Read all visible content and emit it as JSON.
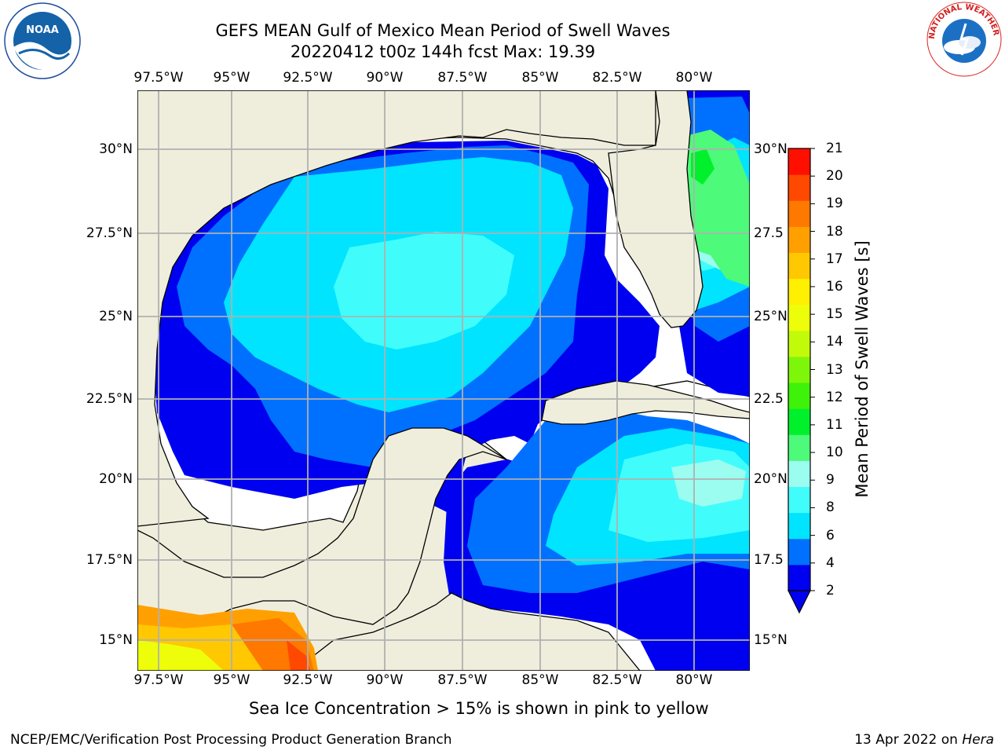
{
  "title": {
    "line1": "GEFS MEAN Gulf of Mexico Mean Period of Swell Waves",
    "line2": "20220412 t00z 144h fcst   Max: 19.39"
  },
  "map": {
    "lon_labels": [
      "97.5°W",
      "95°W",
      "92.5°W",
      "90°W",
      "87.5°W",
      "85°W",
      "82.5°W",
      "80°W"
    ],
    "lat_labels_left": [
      "30°N",
      "27.5°N",
      "25°N",
      "22.5°N",
      "20°N",
      "17.5°N",
      "15°N"
    ],
    "lat_labels_right": [
      "30°N",
      "27.5",
      "25°N",
      "22.5",
      "20°N",
      "17.5",
      "15°N"
    ],
    "land_color": "#efeedd",
    "grid_color": "#b0b0b0"
  },
  "colorbar": {
    "title": "Mean Period of Swell Waves [s]",
    "labels": [
      "21",
      "20",
      "19",
      "18",
      "17",
      "16",
      "15",
      "14",
      "13",
      "12",
      "11",
      "10",
      "9",
      "8",
      "6",
      "4",
      "2"
    ],
    "colors": [
      "#0000f0",
      "#0071ff",
      "#00e4ff",
      "#40fdfb",
      "#9bfdf0",
      "#4dfa7a",
      "#00f02c",
      "#3ff209",
      "#7df60a",
      "#c2fb0a",
      "#eefd0a",
      "#ffef00",
      "#ffc800",
      "#ffa000",
      "#ff7800",
      "#ff4800",
      "#ff0f00"
    ]
  },
  "footnote": "Sea Ice Concentration > 15% is shown in pink to yellow",
  "credit": "NCEP/EMC/Verification Post Processing Product Generation Branch",
  "date": {
    "text": "13 Apr 2022 on",
    "host": "Hera"
  },
  "logos": {
    "noaa_text": "NOAA",
    "nws_text": "NATIONAL WEATHER SERVICE"
  }
}
